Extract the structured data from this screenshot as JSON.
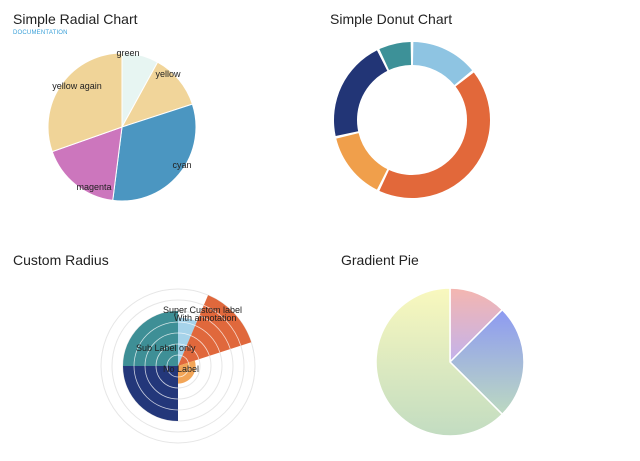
{
  "panels": {
    "radial": {
      "title": "Simple Radial Chart",
      "link": "DOCUMENTATION"
    },
    "donut": {
      "title": "Simple Donut Chart"
    },
    "custom": {
      "title": "Custom Radius"
    },
    "gradient": {
      "title": "Gradient Pie"
    }
  },
  "chart_data": [
    {
      "type": "pie",
      "title": "Simple Radial Chart",
      "slices": [
        {
          "label": "green",
          "value": 1,
          "color": "#e7f5f2"
        },
        {
          "label": "yellow",
          "value": 1.5,
          "color": "#f1d59a"
        },
        {
          "label": "cyan",
          "value": 4,
          "color": "#4b96c1"
        },
        {
          "label": "magenta",
          "value": 2.2,
          "color": "#cc76bd"
        },
        {
          "label": "yellow again",
          "value": 3.8,
          "color": "#f0d498"
        }
      ]
    },
    {
      "type": "donut",
      "title": "Simple Donut Chart",
      "slices": [
        {
          "value": 2,
          "color": "#8ec4e2"
        },
        {
          "value": 6,
          "color": "#e2683a"
        },
        {
          "value": 2,
          "color": "#f09f4b"
        },
        {
          "value": 3,
          "color": "#223576"
        },
        {
          "value": 1,
          "color": "#3d9198"
        }
      ]
    },
    {
      "type": "radial-bar",
      "title": "Custom Radius",
      "ring_count": 7,
      "slices": [
        {
          "start_deg": 0,
          "end_deg": 23,
          "radius": 4.4,
          "color": "#a6d3ea",
          "label": ""
        },
        {
          "start_deg": 23,
          "end_deg": 72,
          "radius": 7,
          "color": "#e0683c",
          "label": "Super Custom label",
          "sublabel": "With annotation"
        },
        {
          "start_deg": 72,
          "end_deg": 180,
          "radius": 1.6,
          "color": "#f2a557",
          "label": ""
        },
        {
          "start_deg": 180,
          "end_deg": 270,
          "radius": 5,
          "color": "#23377a",
          "label": ""
        },
        {
          "start_deg": 270,
          "end_deg": 360,
          "radius": 5,
          "color": "#3e8f96",
          "label": "Sub Label only"
        }
      ],
      "center_label": "No Label"
    },
    {
      "type": "pie",
      "title": "Gradient Pie",
      "slices": [
        {
          "value": 2,
          "from": "#f4b6b0",
          "to": "#c3b2ec"
        },
        {
          "value": 4,
          "from": "#8d9af2",
          "to": "#bcd9c1"
        },
        {
          "value": 10,
          "from": "#f9f8be",
          "to": "#c2dcc1"
        }
      ]
    }
  ]
}
